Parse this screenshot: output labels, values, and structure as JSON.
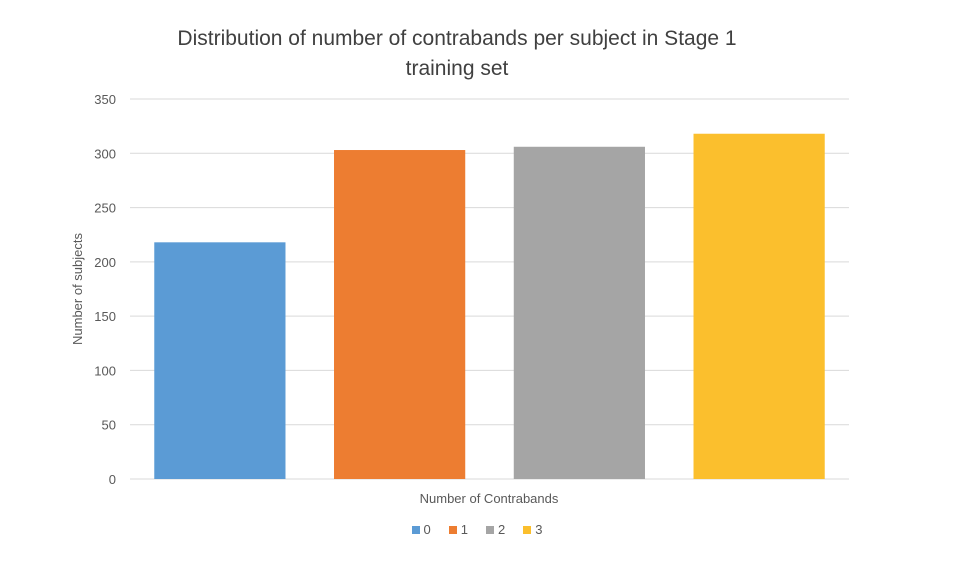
{
  "chart_data": {
    "type": "bar",
    "title": "Distribution of number of contrabands per subject in Stage 1 training set",
    "title_lines": [
      "Distribution of number of contrabands per subject in Stage 1",
      "training set"
    ],
    "xlabel": "Number of  Contrabands",
    "ylabel": "Number of subjects",
    "ylim": [
      0,
      350
    ],
    "yticks": [
      0,
      50,
      100,
      150,
      200,
      250,
      300,
      350
    ],
    "grid": true,
    "legend_position": "bottom",
    "series": [
      {
        "name": "0",
        "value": 218,
        "color": "#5B9BD5"
      },
      {
        "name": "1",
        "value": 303,
        "color": "#ED7D31"
      },
      {
        "name": "2",
        "value": 306,
        "color": "#A5A5A5"
      },
      {
        "name": "3",
        "value": 318,
        "color": "#FBBF2D"
      }
    ]
  }
}
